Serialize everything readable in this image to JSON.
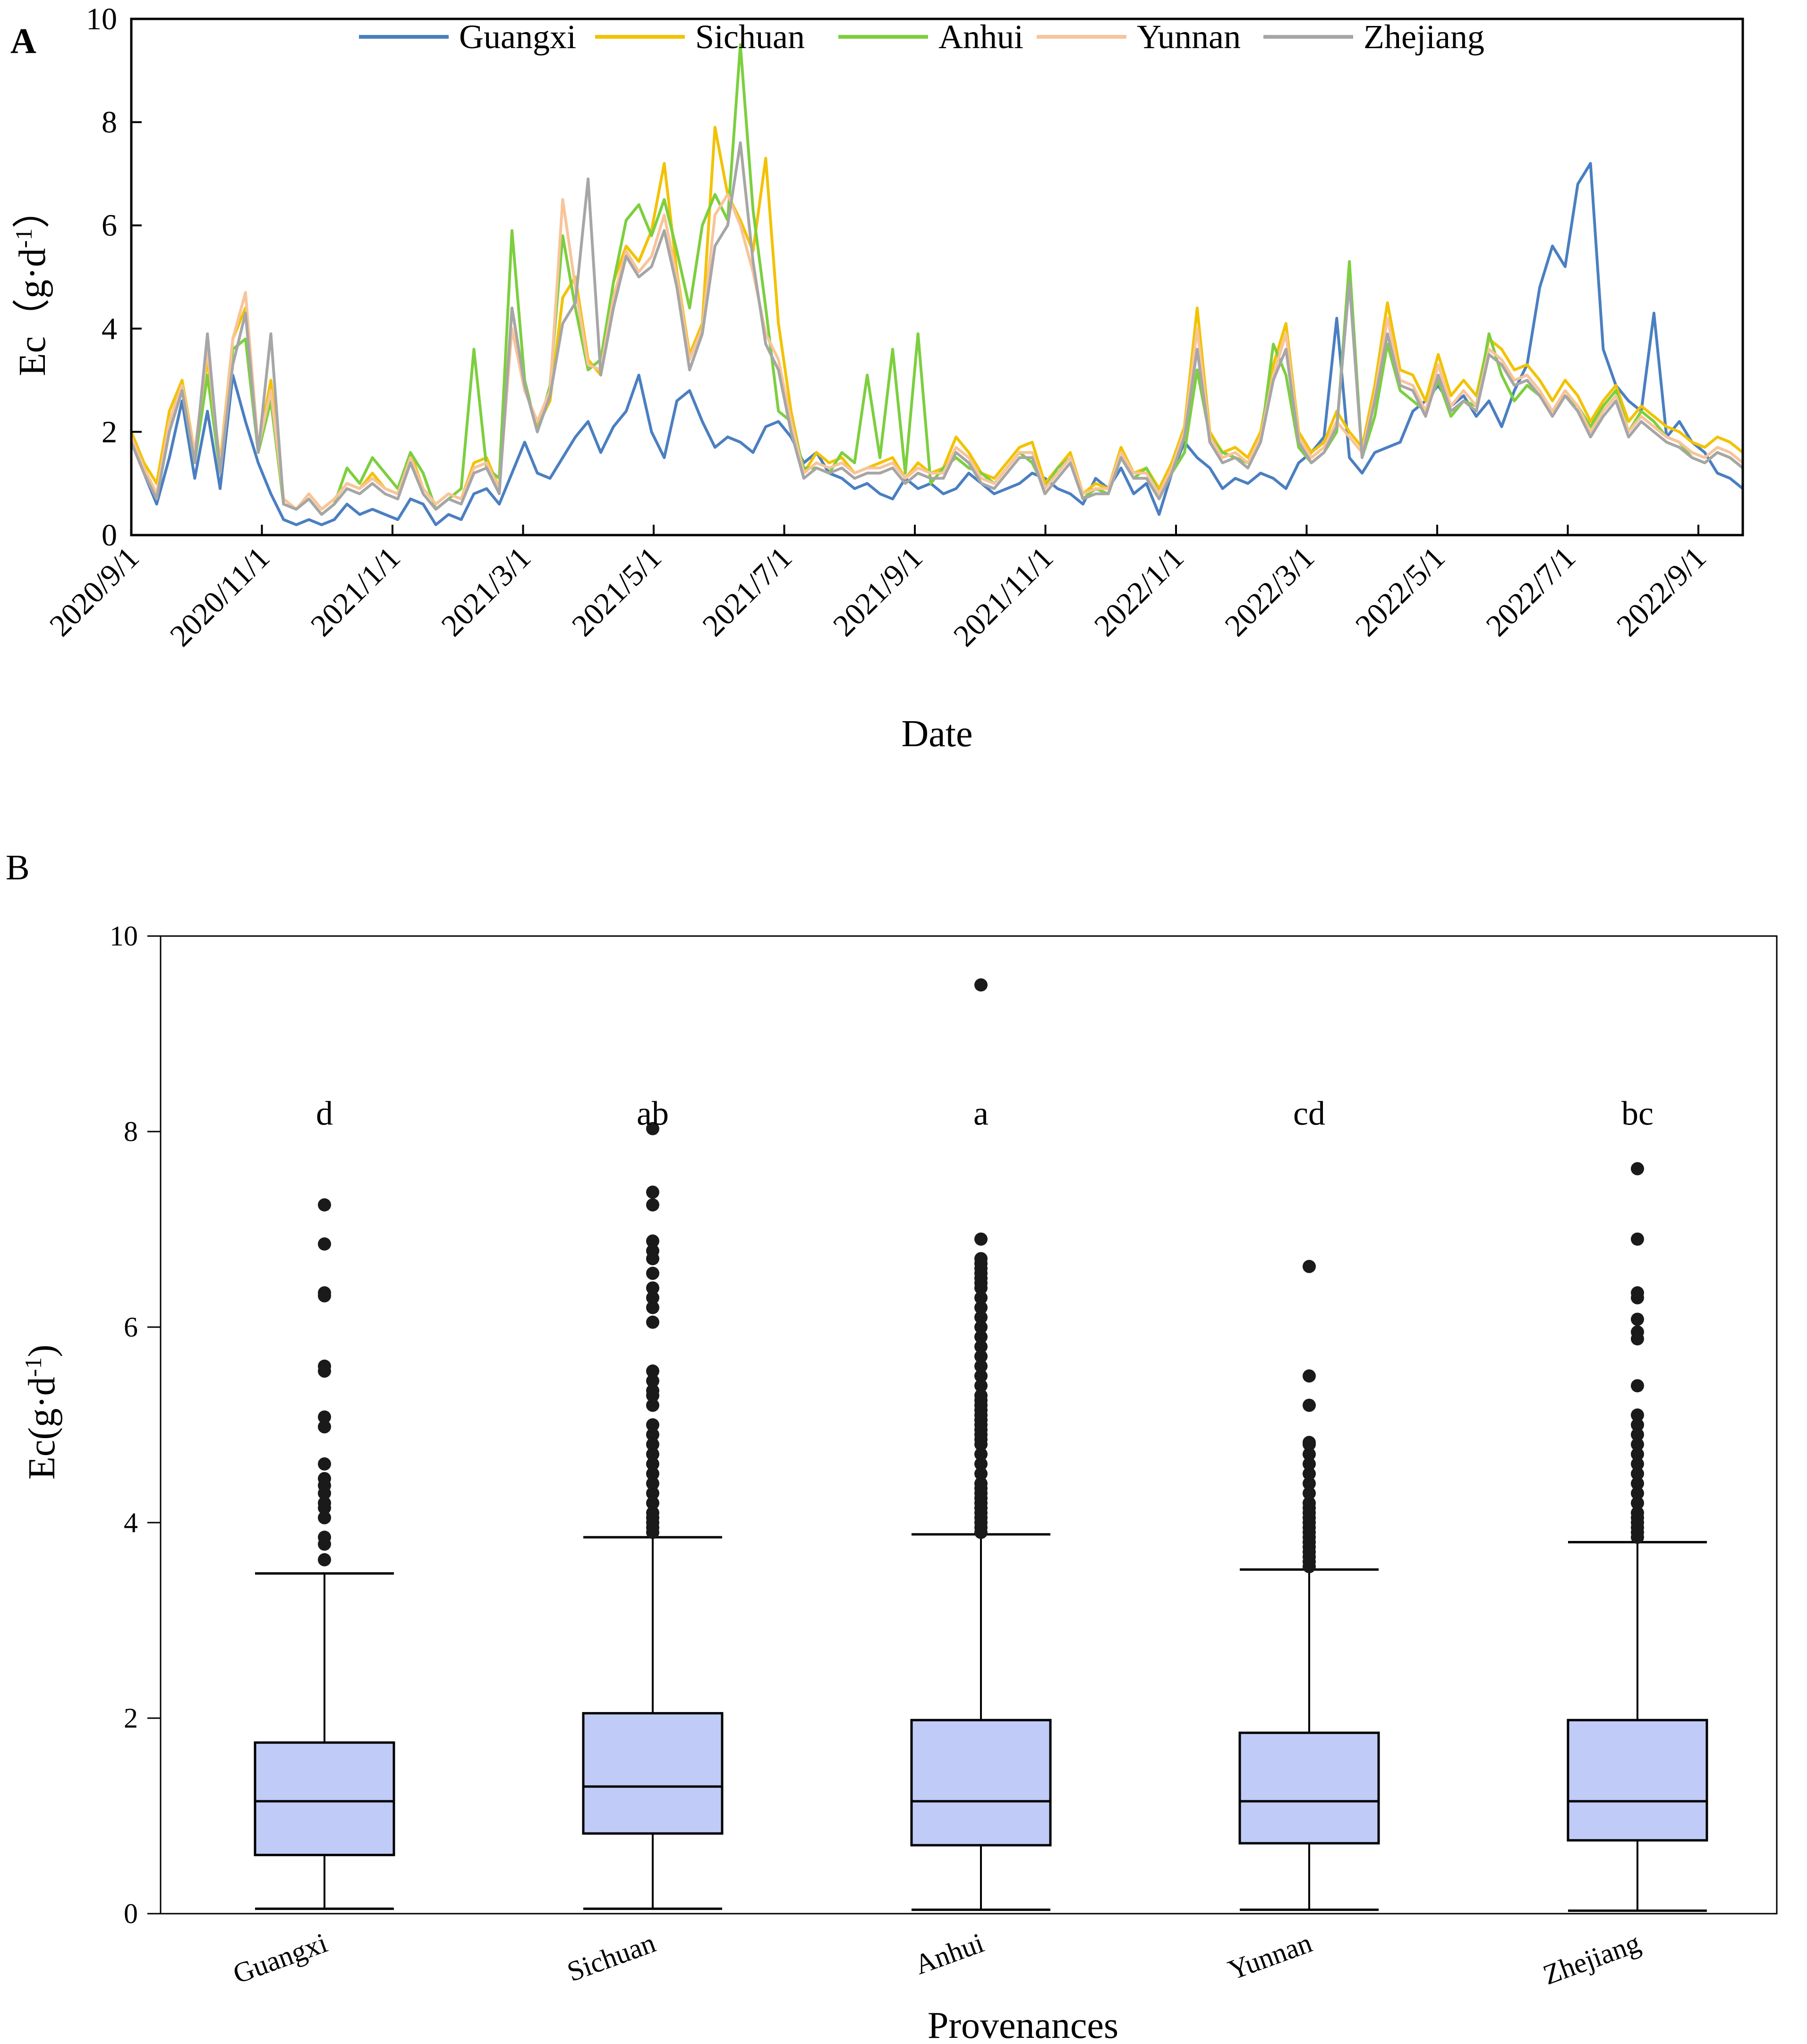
{
  "chart_data": [
    {
      "panel": "A",
      "type": "line",
      "xlabel": "Date",
      "ylabel": "Ec（g·d",
      "ylabel_sup": "-1",
      "ylabel_close": "）",
      "ylim": [
        0,
        10
      ],
      "yticks": [
        0,
        2,
        4,
        6,
        8,
        10
      ],
      "x_tick_labels": [
        "2020/9/1",
        "2020/11/1",
        "2021/1/1",
        "2021/3/1",
        "2021/5/1",
        "2021/7/1",
        "2021/9/1",
        "2021/11/1",
        "2022/1/1",
        "2022/3/1",
        "2022/5/1",
        "2022/7/1",
        "2022/9/1"
      ],
      "legend_position": "top",
      "series": [
        {
          "name": "Guangxi",
          "color": "#4a7fc1",
          "values": [
            1.8,
            1.2,
            0.6,
            1.5,
            2.6,
            1.1,
            2.4,
            0.9,
            3.1,
            2.2,
            1.4,
            0.8,
            0.3,
            0.2,
            0.3,
            0.2,
            0.3,
            0.6,
            0.4,
            0.5,
            0.4,
            0.3,
            0.7,
            0.6,
            0.2,
            0.4,
            0.3,
            0.8,
            0.9,
            0.6,
            1.2,
            1.8,
            1.2,
            1.1,
            1.5,
            1.9,
            2.2,
            1.6,
            2.1,
            2.4,
            3.1,
            2.0,
            1.5,
            2.6,
            2.8,
            2.2,
            1.7,
            1.9,
            1.8,
            1.6,
            2.1,
            2.2,
            1.9,
            1.4,
            1.6,
            1.2,
            1.1,
            0.9,
            1.0,
            0.8,
            0.7,
            1.1,
            0.9,
            1.0,
            0.8,
            0.9,
            1.2,
            1.0,
            0.8,
            0.9,
            1.0,
            1.2,
            1.1,
            0.9,
            0.8,
            0.6,
            1.1,
            0.9,
            1.3,
            0.8,
            1.0,
            0.4,
            1.2,
            1.8,
            1.5,
            1.3,
            0.9,
            1.1,
            1.0,
            1.2,
            1.1,
            0.9,
            1.4,
            1.6,
            1.9,
            4.2,
            1.5,
            1.2,
            1.6,
            1.7,
            1.8,
            2.4,
            2.6,
            2.9,
            2.5,
            2.7,
            2.3,
            2.6,
            2.1,
            2.8,
            3.3,
            4.8,
            5.6,
            5.2,
            6.8,
            7.2,
            3.6,
            2.9,
            2.6,
            2.4,
            4.3,
            1.9,
            2.2,
            1.8,
            1.6,
            1.2,
            1.1,
            0.9
          ]
        },
        {
          "name": "Sichuan",
          "color": "#f2c200",
          "values": [
            2.0,
            1.4,
            1.0,
            2.4,
            3.0,
            1.6,
            3.4,
            1.4,
            3.8,
            4.4,
            1.7,
            3.0,
            0.7,
            0.5,
            0.8,
            0.5,
            0.7,
            1.0,
            0.9,
            1.2,
            0.9,
            0.8,
            1.6,
            0.9,
            0.6,
            0.8,
            0.7,
            1.4,
            1.5,
            0.9,
            4.4,
            2.9,
            2.1,
            2.6,
            4.6,
            5.0,
            3.4,
            3.1,
            4.9,
            5.6,
            5.3,
            5.9,
            7.2,
            5.1,
            3.5,
            4.1,
            7.9,
            6.6,
            6.1,
            5.5,
            7.3,
            4.1,
            2.4,
            1.2,
            1.6,
            1.4,
            1.5,
            1.2,
            1.3,
            1.4,
            1.5,
            1.1,
            1.4,
            1.2,
            1.3,
            1.9,
            1.6,
            1.2,
            1.1,
            1.4,
            1.7,
            1.8,
            1.0,
            1.3,
            1.6,
            0.8,
            1.0,
            0.9,
            1.7,
            1.2,
            1.3,
            0.9,
            1.4,
            2.1,
            4.4,
            2.0,
            1.6,
            1.7,
            1.5,
            2.0,
            3.3,
            4.1,
            2.0,
            1.6,
            1.8,
            2.4,
            2.0,
            1.7,
            2.9,
            4.5,
            3.2,
            3.1,
            2.6,
            3.5,
            2.7,
            3.0,
            2.7,
            3.8,
            3.6,
            3.2,
            3.3,
            3.0,
            2.6,
            3.0,
            2.7,
            2.2,
            2.6,
            2.9,
            2.2,
            2.5,
            2.3,
            2.1,
            2.0,
            1.8,
            1.7,
            1.9,
            1.8,
            1.6
          ]
        },
        {
          "name": "Anhui",
          "color": "#7ccf3e",
          "values": [
            1.9,
            1.3,
            0.8,
            2.1,
            2.9,
            1.4,
            3.1,
            1.2,
            3.6,
            3.8,
            1.6,
            2.6,
            0.6,
            0.5,
            0.7,
            0.4,
            0.6,
            1.3,
            1.0,
            1.5,
            1.2,
            0.9,
            1.6,
            1.2,
            0.5,
            0.7,
            0.9,
            3.6,
            1.3,
            1.1,
            5.9,
            3.0,
            2.0,
            2.9,
            5.8,
            4.4,
            3.2,
            3.4,
            4.9,
            6.1,
            6.4,
            5.8,
            6.5,
            5.5,
            4.4,
            6.0,
            6.6,
            6.1,
            9.5,
            6.3,
            4.4,
            2.4,
            2.2,
            1.3,
            1.3,
            1.2,
            1.6,
            1.4,
            3.1,
            1.5,
            3.6,
            1.2,
            3.9,
            1.0,
            1.3,
            1.5,
            1.3,
            1.2,
            1.0,
            1.3,
            1.6,
            1.4,
            0.9,
            1.3,
            1.5,
            0.7,
            0.9,
            0.8,
            1.5,
            1.1,
            1.3,
            0.8,
            1.2,
            1.6,
            3.2,
            1.9,
            1.6,
            1.5,
            1.4,
            1.8,
            3.7,
            3.1,
            1.7,
            1.4,
            1.6,
            2.0,
            5.3,
            1.5,
            2.3,
            3.7,
            2.8,
            2.6,
            2.4,
            3.0,
            2.3,
            2.6,
            2.5,
            3.9,
            3.1,
            2.6,
            2.9,
            2.7,
            2.4,
            2.7,
            2.5,
            2.1,
            2.5,
            2.8,
            2.0,
            2.4,
            2.2,
            1.9,
            1.8,
            1.5,
            1.4,
            1.6,
            1.5,
            1.3
          ]
        },
        {
          "name": "Yunnan",
          "color": "#f8c49a",
          "values": [
            1.9,
            1.3,
            0.8,
            2.2,
            2.9,
            1.6,
            3.6,
            1.3,
            3.8,
            4.7,
            1.7,
            2.8,
            0.7,
            0.5,
            0.8,
            0.5,
            0.7,
            1.0,
            0.9,
            1.1,
            0.9,
            0.8,
            1.5,
            0.9,
            0.6,
            0.8,
            0.7,
            1.3,
            1.4,
            0.9,
            4.0,
            2.8,
            2.2,
            2.8,
            6.5,
            4.8,
            3.3,
            3.2,
            4.6,
            5.5,
            5.1,
            5.4,
            6.2,
            5.0,
            3.4,
            4.0,
            6.2,
            6.6,
            6.0,
            5.1,
            3.9,
            3.4,
            2.2,
            1.2,
            1.4,
            1.3,
            1.4,
            1.2,
            1.3,
            1.3,
            1.4,
            1.1,
            1.3,
            1.2,
            1.2,
            1.7,
            1.5,
            1.1,
            1.0,
            1.3,
            1.6,
            1.6,
            0.9,
            1.2,
            1.5,
            0.8,
            0.9,
            0.9,
            1.6,
            1.2,
            1.2,
            0.8,
            1.3,
            2.0,
            4.0,
            1.9,
            1.5,
            1.6,
            1.4,
            1.9,
            3.1,
            3.9,
            1.9,
            1.5,
            1.7,
            2.2,
            1.9,
            1.6,
            2.7,
            4.2,
            3.0,
            2.9,
            2.4,
            3.3,
            2.5,
            2.8,
            2.5,
            3.6,
            3.4,
            3.0,
            3.1,
            2.8,
            2.4,
            2.8,
            2.5,
            2.0,
            2.4,
            2.7,
            2.0,
            2.3,
            2.1,
            1.9,
            1.8,
            1.6,
            1.5,
            1.7,
            1.6,
            1.4
          ]
        },
        {
          "name": "Zhejiang",
          "color": "#a6a6a6",
          "values": [
            1.8,
            1.2,
            0.7,
            2.0,
            2.8,
            1.4,
            3.9,
            1.2,
            3.3,
            4.3,
            1.6,
            3.9,
            0.6,
            0.5,
            0.7,
            0.4,
            0.6,
            0.9,
            0.8,
            1.0,
            0.8,
            0.7,
            1.4,
            0.8,
            0.5,
            0.7,
            0.6,
            1.2,
            1.3,
            0.8,
            4.4,
            2.9,
            2.0,
            2.7,
            4.1,
            4.5,
            6.9,
            3.1,
            4.4,
            5.4,
            5.0,
            5.2,
            5.9,
            4.8,
            3.2,
            3.9,
            5.6,
            6.0,
            7.6,
            5.3,
            3.7,
            3.2,
            2.0,
            1.1,
            1.3,
            1.2,
            1.3,
            1.1,
            1.2,
            1.2,
            1.3,
            1.0,
            1.2,
            1.1,
            1.1,
            1.6,
            1.4,
            1.0,
            0.9,
            1.2,
            1.5,
            1.5,
            0.8,
            1.1,
            1.4,
            0.7,
            0.8,
            0.8,
            1.5,
            1.1,
            1.1,
            0.7,
            1.2,
            1.9,
            3.6,
            1.8,
            1.4,
            1.5,
            1.3,
            1.8,
            3.0,
            3.6,
            1.8,
            1.4,
            1.6,
            2.1,
            4.9,
            1.5,
            2.6,
            3.9,
            2.9,
            2.8,
            2.3,
            3.1,
            2.4,
            2.6,
            2.4,
            3.5,
            3.3,
            2.9,
            3.0,
            2.7,
            2.3,
            2.7,
            2.4,
            1.9,
            2.3,
            2.6,
            1.9,
            2.2,
            2.0,
            1.8,
            1.7,
            1.5,
            1.4,
            1.6,
            1.5,
            1.3
          ]
        }
      ]
    },
    {
      "panel": "B",
      "type": "box",
      "xlabel": "Provenances",
      "ylabel": "Ec(g·d",
      "ylabel_sup": "-1",
      "ylabel_close": ")",
      "ylim": [
        0,
        10
      ],
      "yticks": [
        0,
        2,
        4,
        6,
        8,
        10
      ],
      "box_color": "#c0cbf7",
      "categories": [
        "Guangxi",
        "Sichuan",
        "Anhui",
        "Yunnan",
        "Zhejiang"
      ],
      "boxes": [
        {
          "name": "Guangxi",
          "whisker_low": 0.05,
          "q1": 0.6,
          "median": 1.15,
          "q3": 1.75,
          "whisker_high": 3.48,
          "letter": "d",
          "outliers": [
            3.62,
            3.78,
            3.85,
            4.05,
            4.15,
            4.2,
            4.3,
            4.38,
            4.45,
            4.6,
            4.98,
            5.08,
            5.55,
            5.6,
            6.32,
            6.35,
            6.85,
            7.25
          ]
        },
        {
          "name": "Sichuan",
          "whisker_low": 0.05,
          "q1": 0.82,
          "median": 1.3,
          "q3": 2.05,
          "whisker_high": 3.85,
          "letter": "ab",
          "outliers": [
            3.9,
            3.95,
            4.0,
            4.05,
            4.1,
            4.2,
            4.3,
            4.4,
            4.5,
            4.6,
            4.7,
            4.8,
            4.9,
            5.0,
            5.2,
            5.3,
            5.35,
            5.45,
            5.55,
            6.05,
            6.2,
            6.3,
            6.4,
            6.55,
            6.7,
            6.78,
            6.88,
            7.25,
            7.38,
            8.03
          ]
        },
        {
          "name": "Anhui",
          "whisker_low": 0.04,
          "q1": 0.7,
          "median": 1.15,
          "q3": 1.98,
          "whisker_high": 3.88,
          "letter": "a",
          "outliers": [
            3.9,
            3.95,
            4.0,
            4.05,
            4.1,
            4.15,
            4.2,
            4.25,
            4.3,
            4.35,
            4.4,
            4.5,
            4.6,
            4.7,
            4.8,
            4.85,
            4.9,
            4.95,
            5.0,
            5.05,
            5.1,
            5.15,
            5.2,
            5.25,
            5.3,
            5.4,
            5.5,
            5.6,
            5.7,
            5.8,
            5.9,
            6.0,
            6.1,
            6.2,
            6.3,
            6.4,
            6.45,
            6.5,
            6.55,
            6.6,
            6.65,
            6.7,
            6.9,
            9.5
          ]
        },
        {
          "name": "Yunnan",
          "whisker_low": 0.04,
          "q1": 0.72,
          "median": 1.15,
          "q3": 1.85,
          "whisker_high": 3.52,
          "letter": "cd",
          "outliers": [
            3.55,
            3.6,
            3.65,
            3.7,
            3.75,
            3.8,
            3.85,
            3.9,
            3.95,
            4.0,
            4.05,
            4.1,
            4.15,
            4.2,
            4.3,
            4.4,
            4.5,
            4.6,
            4.7,
            4.8,
            4.82,
            5.2,
            5.5,
            6.62
          ]
        },
        {
          "name": "Zhejiang",
          "whisker_low": 0.03,
          "q1": 0.75,
          "median": 1.15,
          "q3": 1.98,
          "whisker_high": 3.8,
          "letter": "bc",
          "outliers": [
            3.85,
            3.9,
            3.95,
            4.0,
            4.05,
            4.1,
            4.2,
            4.3,
            4.4,
            4.5,
            4.6,
            4.7,
            4.8,
            4.9,
            5.0,
            5.1,
            5.4,
            5.88,
            5.95,
            6.08,
            6.3,
            6.35,
            6.9,
            7.62
          ]
        }
      ]
    }
  ],
  "panels": {
    "a_label": "A",
    "b_label": "B"
  }
}
